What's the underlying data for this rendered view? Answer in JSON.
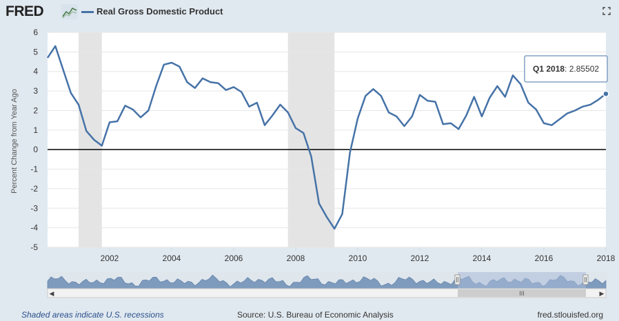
{
  "header": {
    "logo": "FRED",
    "series_name": "Real Gross Domestic Product",
    "series_color": "#4572a7"
  },
  "tooltip": {
    "label": "Q1 2018",
    "value": "2.85502"
  },
  "footer": {
    "recession_note": "Shaded areas indicate U.S. recessions",
    "source": "Source: U.S. Bureau of Economic Analysis",
    "site": "fred.stlouisfed.org"
  },
  "chart_data": {
    "type": "line",
    "title": "Real Gross Domestic Product",
    "xlabel": "",
    "ylabel": "Percent Change from Year Ago",
    "ylim": [
      -5,
      6
    ],
    "xlim": [
      2000.0,
      2018.0
    ],
    "yticks": [
      "6",
      "5",
      "4",
      "3",
      "2",
      "1",
      "0",
      "-1",
      "-2",
      "-3",
      "-4",
      "-5"
    ],
    "xticks": [
      "2002",
      "2004",
      "2006",
      "2008",
      "2010",
      "2012",
      "2014",
      "2016",
      "2018"
    ],
    "recessions": [
      [
        2001.0,
        2001.75
      ],
      [
        2007.75,
        2009.25
      ]
    ],
    "series": [
      {
        "name": "Real Gross Domestic Product",
        "color": "#4572a7",
        "x": [
          2000.0,
          2000.25,
          2000.5,
          2000.75,
          2001.0,
          2001.25,
          2001.5,
          2001.75,
          2002.0,
          2002.25,
          2002.5,
          2002.75,
          2003.0,
          2003.25,
          2003.5,
          2003.75,
          2004.0,
          2004.25,
          2004.5,
          2004.75,
          2005.0,
          2005.25,
          2005.5,
          2005.75,
          2006.0,
          2006.25,
          2006.5,
          2006.75,
          2007.0,
          2007.25,
          2007.5,
          2007.75,
          2008.0,
          2008.25,
          2008.5,
          2008.75,
          2009.0,
          2009.25,
          2009.5,
          2009.75,
          2010.0,
          2010.25,
          2010.5,
          2010.75,
          2011.0,
          2011.25,
          2011.5,
          2011.75,
          2012.0,
          2012.25,
          2012.5,
          2012.75,
          2013.0,
          2013.25,
          2013.5,
          2013.75,
          2014.0,
          2014.25,
          2014.5,
          2014.75,
          2015.0,
          2015.25,
          2015.5,
          2015.75,
          2016.0,
          2016.25,
          2016.5,
          2016.75,
          2017.0,
          2017.25,
          2017.5,
          2017.75,
          2018.0
        ],
        "values": [
          4.7,
          5.3,
          4.1,
          2.9,
          2.3,
          0.95,
          0.5,
          0.2,
          1.4,
          1.45,
          2.25,
          2.05,
          1.65,
          2.0,
          3.25,
          4.35,
          4.45,
          4.25,
          3.45,
          3.15,
          3.65,
          3.45,
          3.4,
          3.05,
          3.2,
          2.95,
          2.2,
          2.4,
          1.25,
          1.75,
          2.3,
          1.9,
          1.1,
          0.85,
          -0.35,
          -2.75,
          -3.45,
          -4.05,
          -3.3,
          -0.15,
          1.6,
          2.75,
          3.1,
          2.75,
          1.9,
          1.7,
          1.2,
          1.7,
          2.8,
          2.5,
          2.45,
          1.3,
          1.35,
          1.05,
          1.75,
          2.7,
          1.7,
          2.65,
          3.25,
          2.7,
          3.8,
          3.35,
          2.4,
          2.05,
          1.35,
          1.25,
          1.55,
          1.85,
          2.0,
          2.2,
          2.3,
          2.55,
          2.85502
        ]
      }
    ]
  }
}
